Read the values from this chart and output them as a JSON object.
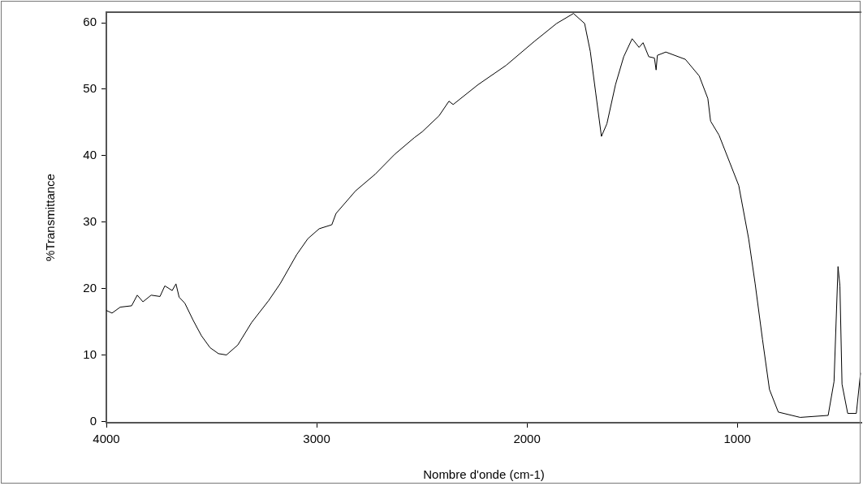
{
  "chart_data": {
    "type": "line",
    "xlabel": "Nombre d'onde (cm-1)",
    "ylabel": "%Transmittance",
    "xlim": [
      4000,
      410
    ],
    "xticks": [
      4000,
      3000,
      2000,
      1000
    ],
    "ylim": [
      -0.2,
      61.6
    ],
    "yticks": [
      0,
      10,
      20,
      30,
      40,
      50,
      60
    ],
    "series": [
      {
        "color": "#000000",
        "x": [
          4000,
          3973,
          3934,
          3880,
          3853,
          3826,
          3787,
          3745,
          3722,
          3687,
          3669,
          3654,
          3627,
          3587,
          3548,
          3507,
          3467,
          3429,
          3375,
          3309,
          3228,
          3174,
          3095,
          3042,
          2988,
          2928,
          2908,
          2815,
          2722,
          2629,
          2536,
          2498,
          2418,
          2371,
          2351,
          2232,
          2099,
          1965,
          1859,
          1779,
          1726,
          1699,
          1673,
          1646,
          1620,
          1579,
          1540,
          1500,
          1467,
          1448,
          1421,
          1394,
          1386,
          1380,
          1340,
          1247,
          1181,
          1140,
          1127,
          1087,
          1035,
          993,
          946,
          915,
          880,
          847,
          805,
          701,
          568,
          540,
          521,
          512,
          502,
          475,
          434,
          414
        ],
        "values": [
          16.7,
          16.3,
          17.2,
          17.4,
          19.0,
          18.0,
          19.0,
          18.8,
          20.4,
          19.7,
          20.7,
          18.7,
          17.8,
          15.2,
          12.9,
          11.1,
          10.2,
          10.0,
          11.5,
          14.9,
          18.2,
          20.7,
          25.1,
          27.5,
          29.0,
          29.6,
          31.3,
          34.7,
          37.2,
          40.2,
          42.7,
          43.6,
          46.0,
          48.2,
          47.7,
          50.7,
          53.6,
          57.2,
          59.9,
          61.4,
          59.9,
          55.7,
          49.4,
          42.9,
          44.8,
          50.7,
          54.9,
          57.6,
          56.3,
          57.0,
          54.9,
          54.7,
          52.9,
          55.1,
          55.6,
          54.5,
          52.0,
          48.6,
          45.2,
          43.1,
          38.9,
          35.5,
          27.5,
          20.7,
          12.3,
          4.8,
          1.4,
          0.6,
          0.9,
          6.0,
          23.3,
          20.4,
          5.6,
          1.2,
          1.2,
          7.3
        ]
      }
    ]
  }
}
